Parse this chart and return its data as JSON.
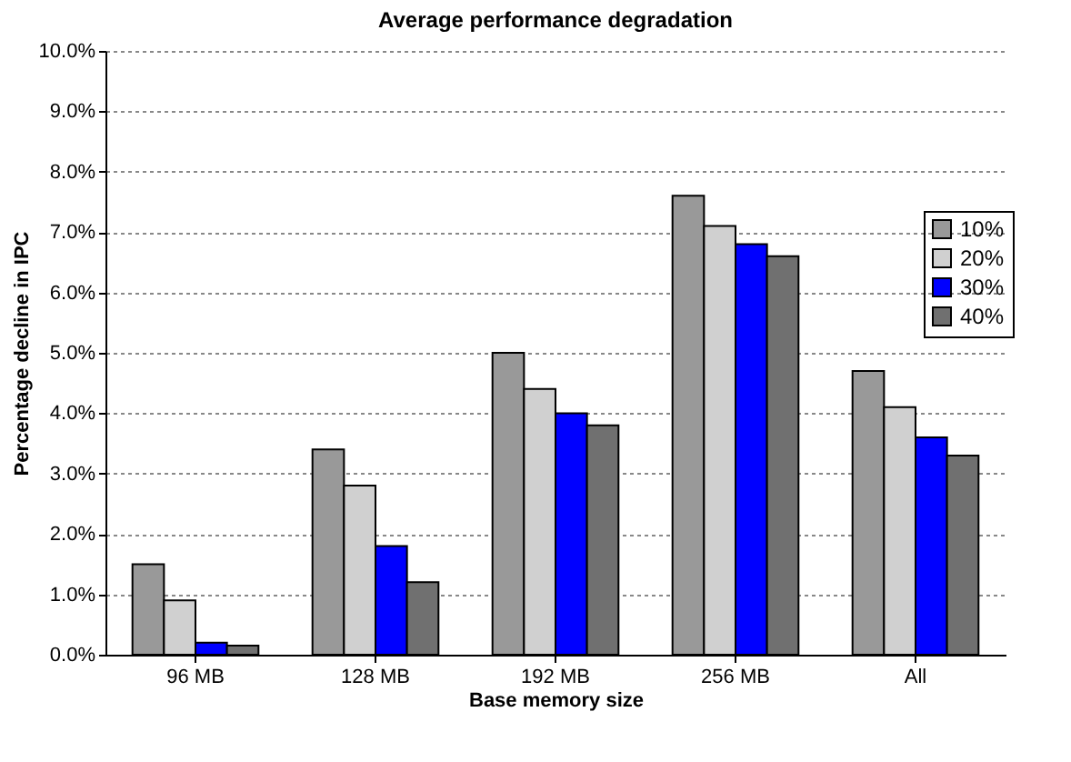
{
  "chart_data": {
    "type": "bar",
    "title": "Average performance degradation",
    "xlabel": "Base memory size",
    "ylabel": "Percentage decline in IPC",
    "categories": [
      "96 MB",
      "128 MB",
      "192 MB",
      "256 MB",
      "All"
    ],
    "series": [
      {
        "name": "10%",
        "color": "#999999",
        "values": [
          1.5,
          3.4,
          5.0,
          7.6,
          4.7
        ]
      },
      {
        "name": "20%",
        "color": "#d0d0d0",
        "values": [
          0.9,
          2.8,
          4.4,
          7.1,
          4.1
        ]
      },
      {
        "name": "30%",
        "color": "#0000ff",
        "values": [
          0.2,
          1.8,
          4.0,
          6.8,
          3.6
        ]
      },
      {
        "name": "40%",
        "color": "#707070",
        "values": [
          0.15,
          1.2,
          3.8,
          6.6,
          3.3
        ]
      }
    ],
    "ylim": [
      0,
      10
    ],
    "yticks": [
      {
        "value": 0,
        "label": "0.0%"
      },
      {
        "value": 1,
        "label": "1.0%"
      },
      {
        "value": 2,
        "label": "2.0%"
      },
      {
        "value": 3,
        "label": "3.0%"
      },
      {
        "value": 4,
        "label": "4.0%"
      },
      {
        "value": 5,
        "label": "5.0%"
      },
      {
        "value": 6,
        "label": "6.0%"
      },
      {
        "value": 7,
        "label": "7.0%"
      },
      {
        "value": 8,
        "label": "8.0%"
      },
      {
        "value": 9,
        "label": "9.0%"
      },
      {
        "value": 10,
        "label": "10.0%"
      }
    ],
    "grid": "y",
    "legend": "top right"
  }
}
